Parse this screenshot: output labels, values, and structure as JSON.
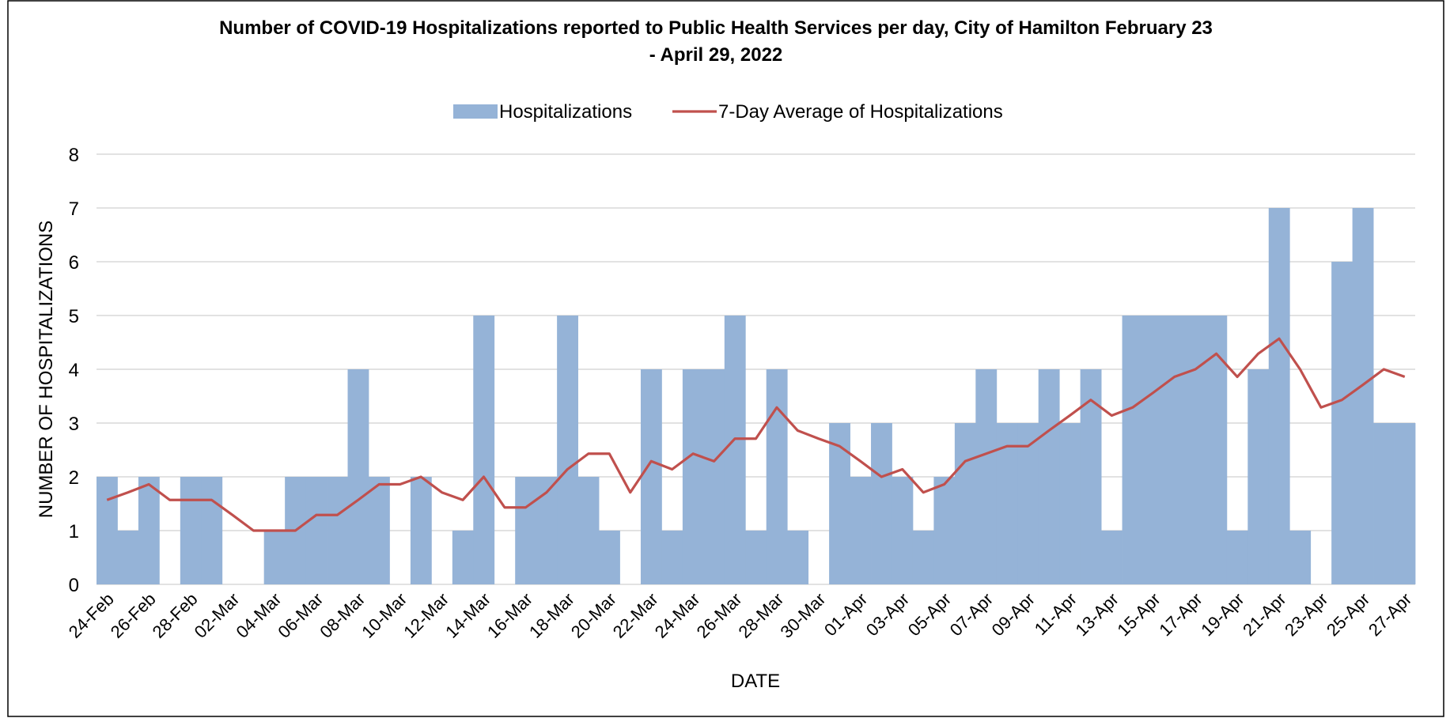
{
  "chart_data": {
    "type": "bar",
    "title": [
      "Number of COVID-19  Hospitalizations reported to Public Health Services per day, City of Hamilton February 23",
      "- April 29, 2022"
    ],
    "x_label": "DATE",
    "y_label": "NUMBER OF HOSPITALIZATIONS",
    "categories": [
      "24-Feb",
      null,
      "26-Feb",
      null,
      "28-Feb",
      null,
      "02-Mar",
      null,
      "04-Mar",
      null,
      "06-Mar",
      null,
      "08-Mar",
      null,
      "10-Mar",
      null,
      "12-Mar",
      null,
      "14-Mar",
      null,
      "16-Mar",
      null,
      "18-Mar",
      null,
      "20-Mar",
      null,
      "22-Mar",
      null,
      "24-Mar",
      null,
      "26-Mar",
      null,
      "28-Mar",
      null,
      "30-Mar",
      null,
      "01-Apr",
      null,
      "03-Apr",
      null,
      "05-Apr",
      null,
      "07-Apr",
      null,
      "09-Apr",
      null,
      "11-Apr",
      null,
      "13-Apr",
      null,
      "15-Apr",
      null,
      "17-Apr",
      null,
      "19-Apr",
      null,
      "21-Apr",
      null,
      "23-Apr",
      null,
      "25-Apr",
      null,
      "27-Apr"
    ],
    "series": [
      {
        "name": "Hospitalizations",
        "type": "bar",
        "color": "#95b3d7",
        "values": [
          2,
          1,
          2,
          0,
          2,
          2,
          0,
          0,
          1,
          2,
          2,
          2,
          4,
          2,
          0,
          2,
          0,
          1,
          5,
          0,
          2,
          2,
          5,
          2,
          1,
          0,
          4,
          1,
          4,
          4,
          5,
          1,
          4,
          1,
          0,
          3,
          2,
          3,
          2,
          1,
          2,
          3,
          4,
          3,
          3,
          4,
          3,
          4,
          1,
          5,
          5,
          5,
          5,
          5,
          1,
          4,
          7,
          1,
          0,
          6,
          7,
          3,
          3
        ]
      },
      {
        "name": "7-Day Average of Hospitalizations",
        "type": "line",
        "color": "#c0504d",
        "values": [
          1.57,
          1.71,
          1.86,
          1.57,
          1.57,
          1.57,
          1.29,
          1.0,
          1.0,
          1.0,
          1.29,
          1.29,
          1.57,
          1.86,
          1.86,
          2.0,
          1.71,
          1.57,
          2.0,
          1.43,
          1.43,
          1.71,
          2.14,
          2.43,
          2.43,
          1.71,
          2.29,
          2.14,
          2.43,
          2.29,
          2.71,
          2.71,
          3.29,
          2.86,
          2.71,
          2.57,
          2.29,
          2.0,
          2.14,
          1.71,
          1.86,
          2.29,
          2.43,
          2.57,
          2.57,
          2.86,
          3.14,
          3.43,
          3.14,
          3.29,
          3.57,
          3.86,
          4.0,
          4.29,
          3.86,
          4.29,
          4.57,
          4.0,
          3.29,
          3.43,
          3.71,
          4.0,
          3.86
        ]
      }
    ],
    "ylim": [
      0,
      8
    ],
    "yticks": [
      0,
      1,
      2,
      3,
      4,
      5,
      6,
      7,
      8
    ],
    "grid": true,
    "legend": "top"
  }
}
